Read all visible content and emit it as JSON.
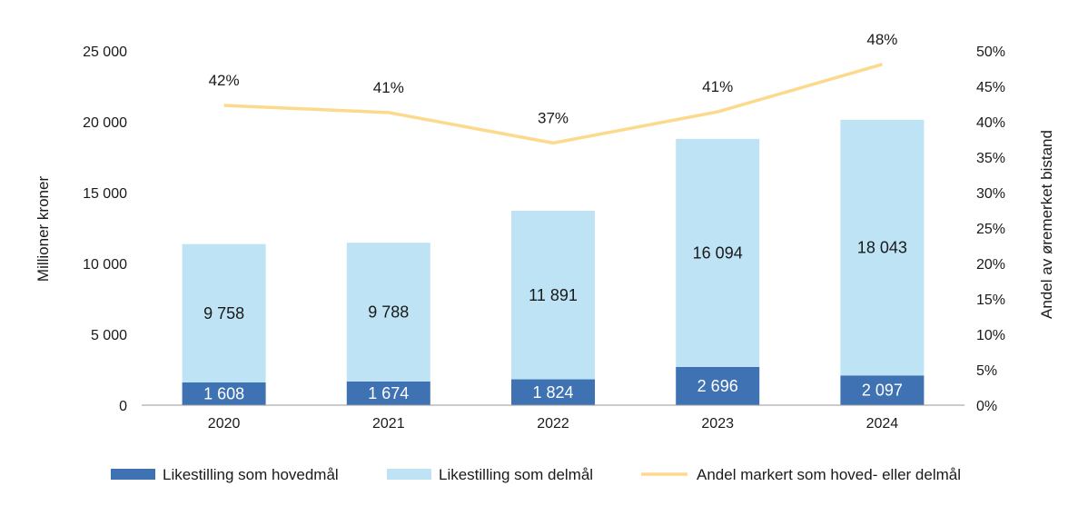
{
  "chart_data": {
    "type": "bar",
    "categories": [
      "2020",
      "2021",
      "2022",
      "2023",
      "2024"
    ],
    "series": [
      {
        "name": "Likestilling som hovedmål",
        "kind": "bar",
        "color": "#3f72b3",
        "values": [
          1608,
          1674,
          1824,
          2696,
          2097
        ],
        "labels": [
          "1 608",
          "1 674",
          "1 824",
          "2 696",
          "2 097"
        ]
      },
      {
        "name": "Likestilling som delmål",
        "kind": "bar",
        "color": "#bde3f5",
        "values": [
          9758,
          9788,
          11891,
          16094,
          18043
        ],
        "labels": [
          "9 758",
          "9 788",
          "11 891",
          "16 094",
          "18 043"
        ]
      },
      {
        "name": "Andel markert som hoved- eller delmål",
        "kind": "line",
        "color": "#fdd98d",
        "axis": "right",
        "values": [
          42.3,
          41.3,
          37.0,
          41.4,
          48.1
        ],
        "labels": [
          "42%",
          "41%",
          "37%",
          "41%",
          "48%"
        ]
      }
    ],
    "ylabel": "Millioner kroner",
    "y2label": "Andel av øremerket bistand",
    "ylim": [
      0,
      25000
    ],
    "y2lim": [
      0,
      50
    ],
    "yticks": [
      "0",
      "5 000",
      "10 000",
      "15 000",
      "20 000",
      "25 000"
    ],
    "y2ticks": [
      "0%",
      "5%",
      "10%",
      "15%",
      "20%",
      "25%",
      "30%",
      "35%",
      "40%",
      "45%",
      "50%"
    ],
    "legend_position": "bottom",
    "stacked": true
  }
}
